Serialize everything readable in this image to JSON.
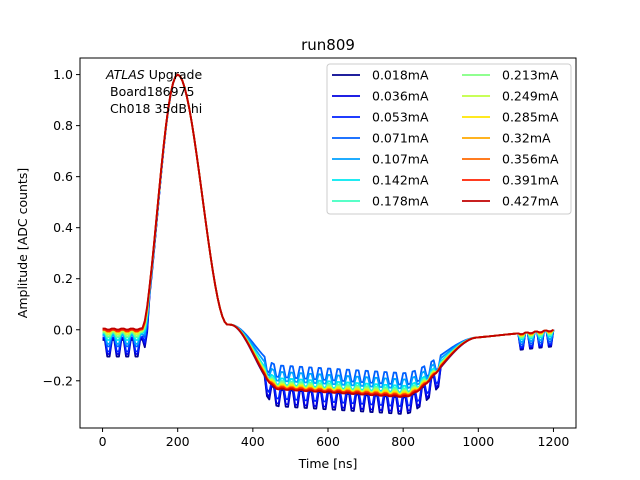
{
  "chart_data": {
    "type": "line",
    "title": "run809",
    "xlabel": "Time [ns]",
    "ylabel": "Amplitude [ADC counts]",
    "xlim": [
      -60,
      1260
    ],
    "ylim": [
      -0.385,
      1.065
    ],
    "xticks": [
      0,
      200,
      400,
      600,
      800,
      1000,
      1200
    ],
    "xtick_labels": [
      "0",
      "200",
      "400",
      "600",
      "800",
      "1000",
      "1200"
    ],
    "yticks": [
      -0.2,
      0.0,
      0.2,
      0.4,
      0.6,
      0.8,
      1.0
    ],
    "ytick_labels": [
      "−0.2",
      "0.0",
      "0.2",
      "0.4",
      "0.6",
      "0.8",
      "1.0"
    ],
    "grid": false,
    "legend_position": "top-right",
    "legend_columns": 2,
    "annotation": {
      "line1_italic": "ATLAS",
      "line1_rest": " Upgrade",
      "line2": "Board186975",
      "line3": "Ch018 35dB hi"
    },
    "x_start": 0,
    "x_end": 1200,
    "x_step": 6.25,
    "series": [
      {
        "name": "0.018mA",
        "color": "#00008f",
        "ripple": 0.065,
        "baseline": -0.04,
        "undershoot": -0.265
      },
      {
        "name": "0.036mA",
        "color": "#0000e0",
        "ripple": 0.06,
        "baseline": -0.035,
        "undershoot": -0.26
      },
      {
        "name": "0.053mA",
        "color": "#0020ff",
        "ripple": 0.055,
        "baseline": -0.03,
        "undershoot": -0.245
      },
      {
        "name": "0.071mA",
        "color": "#0060ff",
        "ripple": 0.045,
        "baseline": -0.02,
        "undershoot": -0.17
      },
      {
        "name": "0.107mA",
        "color": "#00a0ff",
        "ripple": 0.035,
        "baseline": -0.02,
        "undershoot": -0.195
      },
      {
        "name": "0.142mA",
        "color": "#00e8f0",
        "ripple": 0.025,
        "baseline": -0.015,
        "undershoot": -0.22
      },
      {
        "name": "0.178mA",
        "color": "#40ffc0",
        "ripple": 0.02,
        "baseline": -0.01,
        "undershoot": -0.23
      },
      {
        "name": "0.213mA",
        "color": "#80ff80",
        "ripple": 0.015,
        "baseline": -0.01,
        "undershoot": -0.235
      },
      {
        "name": "0.249mA",
        "color": "#c0ff40",
        "ripple": 0.012,
        "baseline": -0.005,
        "undershoot": -0.24
      },
      {
        "name": "0.285mA",
        "color": "#ffe600",
        "ripple": 0.01,
        "baseline": 0.0,
        "undershoot": -0.245
      },
      {
        "name": "0.32mA",
        "color": "#ffa800",
        "ripple": 0.008,
        "baseline": 0.0,
        "undershoot": -0.25
      },
      {
        "name": "0.356mA",
        "color": "#ff6a00",
        "ripple": 0.006,
        "baseline": 0.0,
        "undershoot": -0.252
      },
      {
        "name": "0.391mA",
        "color": "#ff2000",
        "ripple": 0.005,
        "baseline": 0.0,
        "undershoot": -0.255
      },
      {
        "name": "0.427mA",
        "color": "#c00000",
        "ripple": 0.004,
        "baseline": 0.005,
        "undershoot": -0.26
      }
    ]
  }
}
